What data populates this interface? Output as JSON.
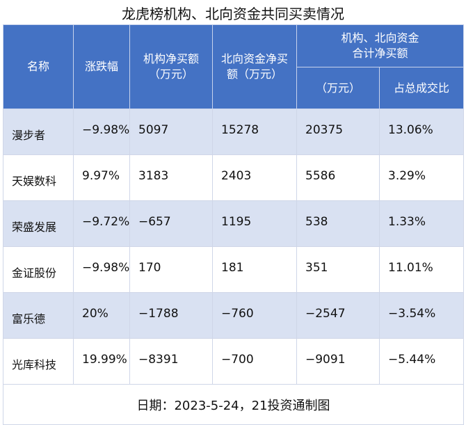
{
  "title": "龙虎榜机构、北向资金共同买卖情况",
  "headers": {
    "name": "名称",
    "change": "涨跌幅",
    "inst_net": "机构净买额\n（万元）",
    "north_net": "北向资金净买\n额（万元）",
    "combined_group": "机构、北向资金\n合计净买额",
    "combined_amount": "（万元）",
    "ratio": "占总成交比"
  },
  "rows": [
    {
      "name": "漫步者",
      "change": "−9.98%",
      "inst_net": "5097",
      "north_net": "15278",
      "combined": "20375",
      "ratio": "13.06%"
    },
    {
      "name": "天娱数科",
      "change": "9.97%",
      "inst_net": "3183",
      "north_net": "2403",
      "combined": "5586",
      "ratio": "3.29%"
    },
    {
      "name": "荣盛发展",
      "change": "−9.72%",
      "inst_net": "−657",
      "north_net": "1195",
      "combined": "538",
      "ratio": "1.33%"
    },
    {
      "name": "金证股份",
      "change": "−9.98%",
      "inst_net": "170",
      "north_net": "181",
      "combined": "351",
      "ratio": "11.01%"
    },
    {
      "name": "富乐德",
      "change": "20%",
      "inst_net": "−1788",
      "north_net": "−760",
      "combined": "−2547",
      "ratio": "−3.54%"
    },
    {
      "name": "光库科技",
      "change": "19.99%",
      "inst_net": "−8391",
      "north_net": "−700",
      "combined": "−9091",
      "ratio": "−5.44%"
    }
  ],
  "footer": "日期：2023-5-24，21投资通制图",
  "colors": {
    "header_bg": "#4472c4",
    "band_bg": "#d9e1f2"
  }
}
